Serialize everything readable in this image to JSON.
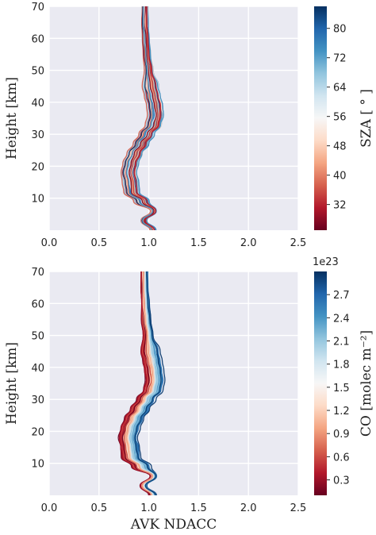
{
  "chart_data": [
    {
      "type": "line",
      "title": "",
      "xlabel": "",
      "ylabel": "Height [km]",
      "xlim": [
        0.0,
        2.5
      ],
      "ylim": [
        0,
        70
      ],
      "xticks": [
        "0.0",
        "0.5",
        "1.0",
        "1.5",
        "2.0",
        "2.5"
      ],
      "yticks": [
        "10",
        "20",
        "30",
        "40",
        "50",
        "60",
        "70"
      ],
      "grid": true,
      "background": "#eaeaf2",
      "colormap": "RdBu",
      "colorbar": {
        "label": "SZA [ ° ]",
        "offset_text": "",
        "range": [
          25,
          86
        ],
        "ticks": [
          "32",
          "40",
          "48",
          "56",
          "64",
          "72",
          "80"
        ],
        "tick_values": [
          32,
          40,
          48,
          56,
          64,
          72,
          80
        ]
      },
      "series_summary": {
        "count": 60,
        "color_variable": "SZA",
        "color_min": 25,
        "color_max": 86,
        "profile_heights": [
          0,
          3,
          6,
          9,
          12,
          15,
          18,
          21,
          24,
          27,
          30,
          33,
          36,
          39,
          42,
          45,
          50,
          55,
          60,
          65,
          70
        ],
        "profile_values": [
          1.04,
          0.95,
          1.05,
          0.93,
          0.83,
          0.82,
          0.8,
          0.82,
          0.86,
          0.92,
          0.98,
          1.05,
          1.07,
          1.06,
          1.04,
          1.02,
          1.0,
          0.98,
          0.97,
          0.96,
          0.96
        ]
      }
    },
    {
      "type": "line",
      "title": "",
      "xlabel": "AVK NDACC",
      "ylabel": "Height [km]",
      "xlim": [
        0.0,
        2.5
      ],
      "ylim": [
        0,
        70
      ],
      "xticks": [
        "0.0",
        "0.5",
        "1.0",
        "1.5",
        "2.0",
        "2.5"
      ],
      "yticks": [
        "10",
        "20",
        "30",
        "40",
        "50",
        "60",
        "70"
      ],
      "grid": true,
      "background": "#eaeaf2",
      "colormap": "RdBu",
      "colorbar": {
        "label": "CO [molec m⁻²]",
        "offset_text": "1e23",
        "range": [
          0.1,
          3.0
        ],
        "ticks": [
          "0.3",
          "0.6",
          "0.9",
          "1.2",
          "1.5",
          "1.8",
          "2.1",
          "2.4",
          "2.7"
        ],
        "tick_values": [
          0.3,
          0.6,
          0.9,
          1.2,
          1.5,
          1.8,
          2.1,
          2.4,
          2.7
        ]
      },
      "series_summary": {
        "count": 70,
        "color_variable": "CO total column",
        "color_min": 0.1,
        "color_max": 3.0,
        "profile_heights": [
          0,
          3,
          6,
          9,
          12,
          15,
          18,
          21,
          24,
          27,
          30,
          33,
          36,
          39,
          42,
          45,
          50,
          55,
          60,
          65,
          70
        ],
        "profile_values": [
          1.04,
          0.95,
          1.05,
          0.93,
          0.83,
          0.82,
          0.8,
          0.82,
          0.86,
          0.92,
          0.98,
          1.05,
          1.07,
          1.06,
          1.04,
          1.02,
          1.0,
          0.98,
          0.97,
          0.96,
          0.96
        ]
      }
    }
  ]
}
